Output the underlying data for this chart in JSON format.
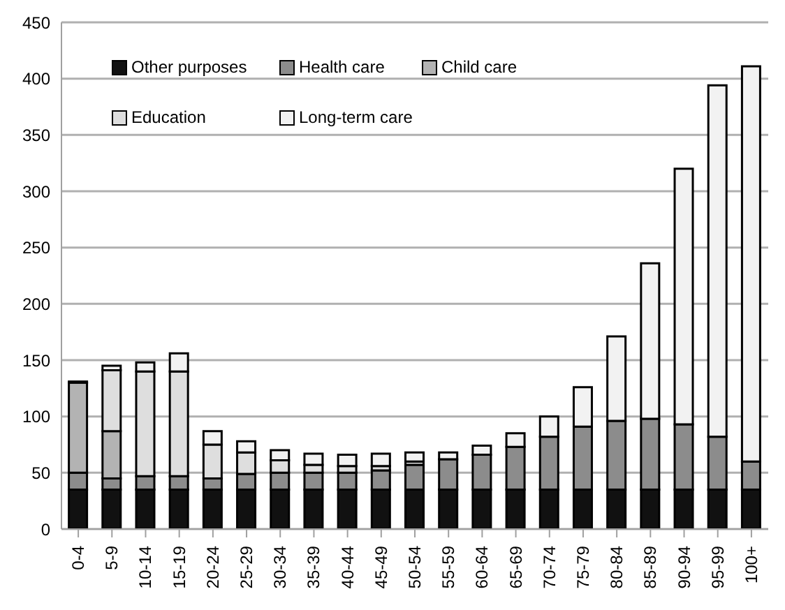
{
  "chart_data": {
    "type": "bar",
    "stacked": true,
    "categories": [
      "0-4",
      "5-9",
      "10-14",
      "15-19",
      "20-24",
      "25-29",
      "30-34",
      "35-39",
      "40-44",
      "45-49",
      "50-54",
      "55-59",
      "60-64",
      "65-69",
      "70-74",
      "75-79",
      "80-84",
      "85-89",
      "90-94",
      "95-99",
      "100+"
    ],
    "series": [
      {
        "name": "Other purposes",
        "color": "#111111",
        "values": [
          35,
          35,
          35,
          35,
          35,
          35,
          35,
          35,
          35,
          35,
          35,
          35,
          35,
          35,
          35,
          35,
          35,
          35,
          35,
          35,
          35
        ]
      },
      {
        "name": "Health care",
        "color": "#8c8c8c",
        "values": [
          15,
          10,
          12,
          12,
          10,
          14,
          15,
          15,
          15,
          17,
          22,
          27,
          31,
          38,
          47,
          56,
          61,
          63,
          58,
          47,
          25
        ]
      },
      {
        "name": "Child care",
        "color": "#b3b3b3",
        "values": [
          80,
          42,
          0,
          0,
          0,
          0,
          0,
          0,
          0,
          0,
          0,
          0,
          0,
          0,
          0,
          0,
          0,
          0,
          0,
          0,
          0
        ]
      },
      {
        "name": "Education",
        "color": "#dedede",
        "values": [
          null,
          54,
          93,
          93,
          30,
          19,
          11,
          7,
          6,
          4,
          3,
          null,
          0,
          0,
          0,
          0,
          0,
          0,
          0,
          0,
          0
        ]
      },
      {
        "name": "Long-term care",
        "color": "#f2f2f2",
        "values": [
          1,
          4,
          8,
          16,
          12,
          10,
          9,
          10,
          10,
          11,
          8,
          6,
          8,
          12,
          18,
          35,
          75,
          138,
          227,
          312,
          351
        ]
      }
    ],
    "ylim": [
      0,
      450
    ],
    "yticks": [
      0,
      50,
      100,
      150,
      200,
      250,
      300,
      350,
      400,
      450
    ],
    "grid": "y",
    "legend": "top left"
  }
}
